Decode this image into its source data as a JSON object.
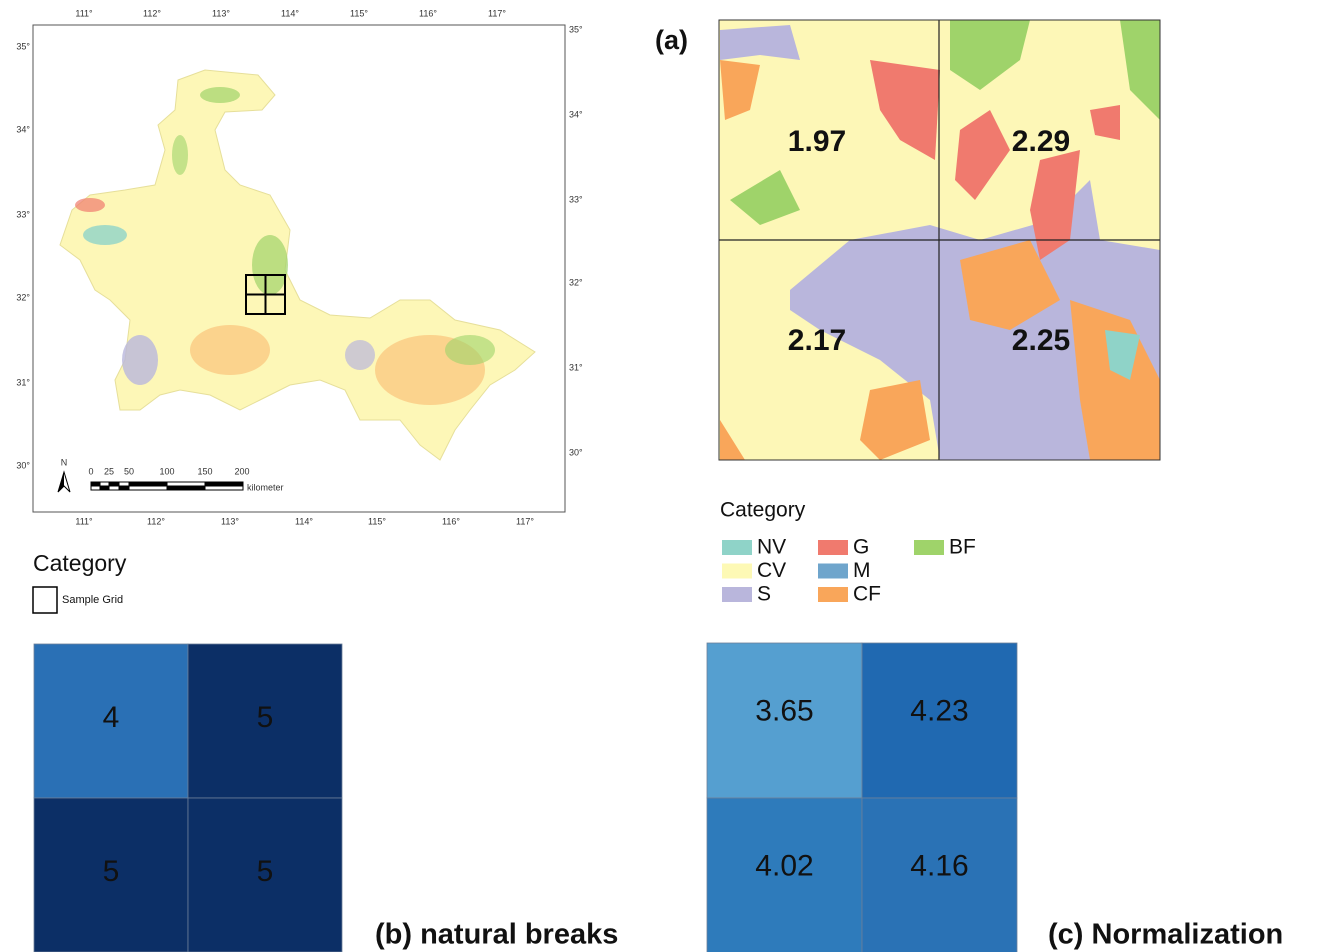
{
  "map": {
    "top_ticks": [
      "111°",
      "112°",
      "113°",
      "114°",
      "115°",
      "116°",
      "117°"
    ],
    "bottom_ticks": [
      "111°",
      "112°",
      "113°",
      "114°",
      "115°",
      "116°",
      "117°"
    ],
    "left_ticks": [
      "35°",
      "34°",
      "33°",
      "32°",
      "31°",
      "30°"
    ],
    "right_ticks": [
      "35°",
      "34°",
      "33°",
      "32°",
      "31°",
      "30°"
    ],
    "north": "N",
    "scale_ticks": [
      "0",
      "25",
      "50",
      "100",
      "150",
      "200"
    ],
    "scale_unit": "kilometer"
  },
  "map_legend": {
    "title": "Category",
    "item": "Sample Grid"
  },
  "panel_a": {
    "label": "(a)",
    "cells": [
      1.97,
      2.29,
      2.17,
      2.25
    ]
  },
  "category_legend": {
    "title": "Category",
    "items": [
      {
        "label": "NV",
        "color": "#8fd3c8"
      },
      {
        "label": "CV",
        "color": "#fdf9b5"
      },
      {
        "label": "S",
        "color": "#b9b6dc"
      },
      {
        "label": "G",
        "color": "#f07a6e"
      },
      {
        "label": "M",
        "color": "#6fa5cc"
      },
      {
        "label": "CF",
        "color": "#f9a65a"
      },
      {
        "label": "BF",
        "color": "#9fd36a"
      }
    ]
  },
  "panel_b": {
    "cells": [
      4,
      5,
      5,
      5
    ],
    "caption": "(b) natural breaks"
  },
  "panel_c": {
    "cells": [
      3.65,
      4.23,
      4.02,
      4.16
    ],
    "caption": "(c) Normalization"
  }
}
